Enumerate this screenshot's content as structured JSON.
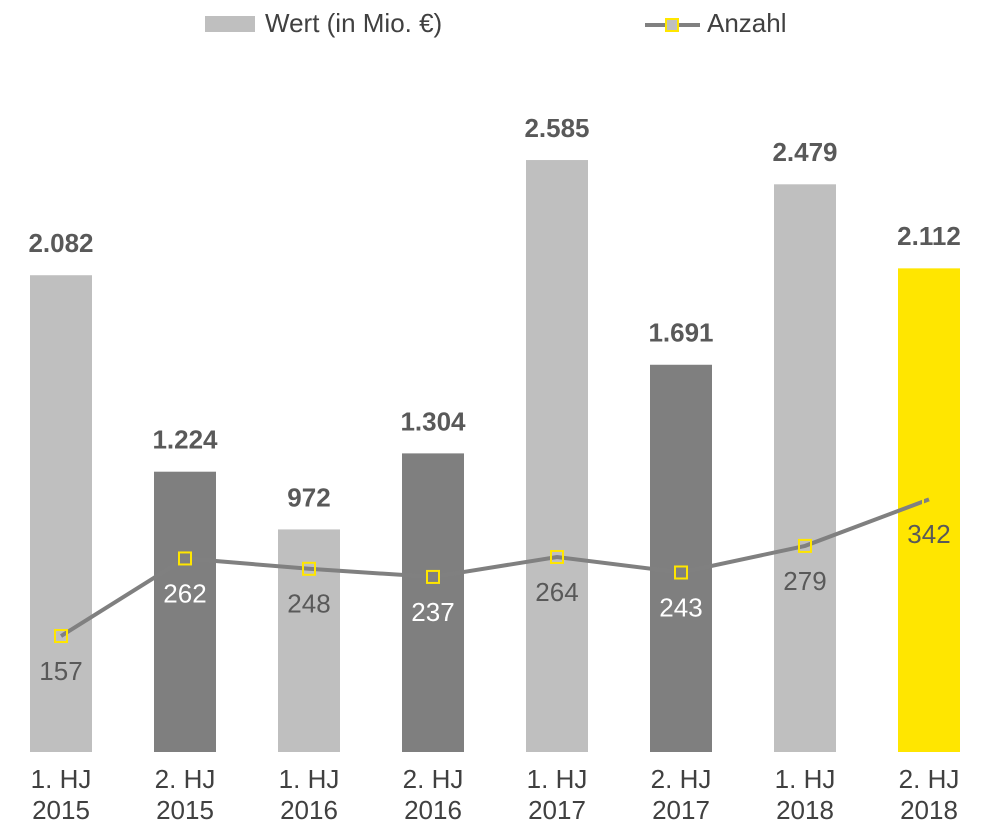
{
  "chart_data": {
    "type": "bar_line",
    "categories": [
      "1. HJ 2015",
      "2. HJ 2015",
      "1. HJ 2016",
      "2. HJ 2016",
      "1. HJ 2017",
      "2. HJ 2017",
      "1. HJ 2018",
      "2. HJ 2018"
    ],
    "series": [
      {
        "name": "Wert (in Mio. €)",
        "type": "bar",
        "color": "#bfbfbf",
        "colors": [
          "#bfbfbf",
          "#7f7f7f",
          "#bfbfbf",
          "#7f7f7f",
          "#bfbfbf",
          "#7f7f7f",
          "#bfbfbf",
          "#ffe600"
        ],
        "values": [
          2082,
          1224,
          972,
          1304,
          2585,
          1691,
          2479,
          2112
        ],
        "value_labels": [
          "2.082",
          "1.224",
          "972",
          "1.304",
          "2.585",
          "1.691",
          "2.479",
          "2.112"
        ]
      },
      {
        "name": "Anzahl",
        "type": "line",
        "axis": "y2",
        "color": "#808080",
        "marker_color": "#ffe600",
        "values": [
          157,
          262,
          248,
          237,
          264,
          243,
          279,
          342
        ]
      }
    ],
    "ylim": [
      0,
      3000
    ],
    "y2lim": [
      0,
      930
    ]
  }
}
